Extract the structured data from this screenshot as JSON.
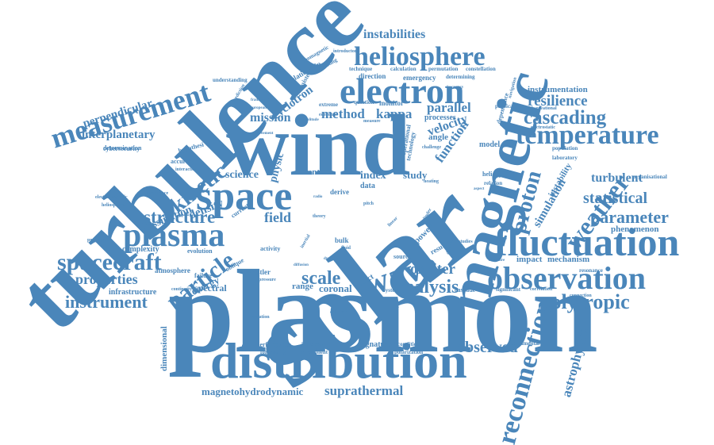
{
  "word_cloud": {
    "colors": {
      "text": "#4a86ba",
      "background": "#ffffff"
    },
    "words": [
      {
        "text": "plasmon",
        "weight": 100
      },
      {
        "text": "solar",
        "weight": 100
      },
      {
        "text": "turbulence",
        "weight": 85
      },
      {
        "text": "wind",
        "weight": 80
      },
      {
        "text": "magnetic",
        "weight": 60
      },
      {
        "text": "distribution",
        "weight": 55
      },
      {
        "text": "fluctuation",
        "weight": 50
      },
      {
        "text": "space",
        "weight": 45
      },
      {
        "text": "electron",
        "weight": 45
      },
      {
        "text": "heliosphere",
        "weight": 40
      },
      {
        "text": "measurement",
        "weight": 40
      },
      {
        "text": "observation",
        "weight": 40
      },
      {
        "text": "plasma",
        "weight": 40
      },
      {
        "text": "temperature",
        "weight": 38
      },
      {
        "text": "wave",
        "weight": 38
      },
      {
        "text": "reconnection",
        "weight": 33
      },
      {
        "text": "weather",
        "weight": 30
      },
      {
        "text": "spacecraft",
        "weight": 28
      },
      {
        "text": "particle",
        "weight": 28
      },
      {
        "text": "kinetic",
        "weight": 28
      },
      {
        "text": "proton",
        "weight": 25
      },
      {
        "text": "polytropic",
        "weight": 25
      },
      {
        "text": "cascading",
        "weight": 25
      },
      {
        "text": "parameter",
        "weight": 22
      },
      {
        "text": "analysis",
        "weight": 22
      },
      {
        "text": "structure",
        "weight": 22
      },
      {
        "text": "scale",
        "weight": 22
      },
      {
        "text": "observed",
        "weight": 20
      },
      {
        "text": "instrument",
        "weight": 20
      },
      {
        "text": "suprathermal",
        "weight": 18
      },
      {
        "text": "properties",
        "weight": 18
      },
      {
        "text": "statistical",
        "weight": 18
      },
      {
        "text": "resilience",
        "weight": 18
      },
      {
        "text": "astrophysics",
        "weight": 18
      },
      {
        "text": "orbiter",
        "weight": 18
      },
      {
        "text": "perpendicular",
        "weight": 16
      },
      {
        "text": "interplanetary",
        "weight": 16
      },
      {
        "text": "instabilities",
        "weight": 16
      },
      {
        "text": "method",
        "weight": 16
      },
      {
        "text": "kappa",
        "weight": 16
      },
      {
        "text": "mission",
        "weight": 16
      },
      {
        "text": "parallel",
        "weight": 16
      },
      {
        "text": "velocity",
        "weight": 16
      },
      {
        "text": "function",
        "weight": 16
      },
      {
        "text": "cyclotron",
        "weight": 15
      },
      {
        "text": "field",
        "weight": 18
      },
      {
        "text": "turbulent",
        "weight": 16
      },
      {
        "text": "simulation",
        "weight": 15
      },
      {
        "text": "dissipation",
        "weight": 15
      },
      {
        "text": "density",
        "weight": 15
      },
      {
        "text": "magnetohydrodynamic",
        "weight": 14
      },
      {
        "text": "science",
        "weight": 15
      },
      {
        "text": "physic",
        "weight": 15
      },
      {
        "text": "phenomenon",
        "weight": 12
      },
      {
        "text": "instrumentation",
        "weight": 12
      },
      {
        "text": "dimensional",
        "weight": 12
      },
      {
        "text": "index",
        "weight": 14
      },
      {
        "text": "study",
        "weight": 14
      },
      {
        "text": "energy",
        "weight": 13
      },
      {
        "text": "spectral",
        "weight": 13
      },
      {
        "text": "instability",
        "weight": 12
      },
      {
        "text": "mechanism",
        "weight": 12
      },
      {
        "text": "impact",
        "weight": 12
      },
      {
        "text": "coronal",
        "weight": 13
      },
      {
        "text": "range",
        "weight": 12
      },
      {
        "text": "infrastructure",
        "weight": 11
      },
      {
        "text": "complexity",
        "weight": 11
      },
      {
        "text": "atmosphere",
        "weight": 10
      },
      {
        "text": "signature",
        "weight": 11
      },
      {
        "text": "power",
        "weight": 12
      },
      {
        "text": "event",
        "weight": 12
      },
      {
        "text": "data",
        "weight": 11
      },
      {
        "text": "model",
        "weight": 11
      },
      {
        "text": "angle",
        "weight": 12
      },
      {
        "text": "processes",
        "weight": 11
      },
      {
        "text": "monitor",
        "weight": 10
      },
      {
        "text": "emergency",
        "weight": 10
      },
      {
        "text": "direction",
        "weight": 10
      },
      {
        "text": "relationship",
        "weight": 10
      },
      {
        "text": "consistent",
        "weight": 9
      },
      {
        "text": "cybersecurity",
        "weight": 9
      },
      {
        "text": "determination",
        "weight": 9
      },
      {
        "text": "hypothesi",
        "weight": 9
      },
      {
        "text": "accuracy",
        "weight": 9
      },
      {
        "text": "evolution",
        "weight": 9
      },
      {
        "text": "whistler",
        "weight": 10
      },
      {
        "text": "activity",
        "weight": 9
      },
      {
        "text": "oblique",
        "weight": 9
      },
      {
        "text": "failure",
        "weight": 9
      },
      {
        "text": "current",
        "weight": 9
      },
      {
        "text": "effect",
        "weight": 10
      },
      {
        "text": "bulk",
        "weight": 10
      },
      {
        "text": "derive",
        "weight": 10
      },
      {
        "text": "source",
        "weight": 9
      },
      {
        "text": "result",
        "weight": 9
      },
      {
        "text": "helicity",
        "weight": 9
      },
      {
        "text": "relation",
        "weight": 9
      },
      {
        "text": "population",
        "weight": 9
      },
      {
        "text": "laboratory",
        "weight": 8
      },
      {
        "text": "organisational",
        "weight": 8
      },
      {
        "text": "resonance",
        "weight": 8
      },
      {
        "text": "cascade",
        "weight": 8
      },
      {
        "text": "significant",
        "weight": 8
      },
      {
        "text": "performance",
        "weight": 8
      },
      {
        "text": "forecasting",
        "weight": 8
      },
      {
        "text": "important",
        "weight": 8
      },
      {
        "text": "component",
        "weight": 8
      },
      {
        "text": "condition",
        "weight": 8
      },
      {
        "text": "polarization",
        "weight": 8
      },
      {
        "text": "fundamental",
        "weight": 7
      },
      {
        "text": "system",
        "weight": 8
      },
      {
        "text": "operational",
        "weight": 8
      },
      {
        "text": "technology",
        "weight": 8
      },
      {
        "text": "calculation",
        "weight": 7
      },
      {
        "text": "permutation",
        "weight": 7
      },
      {
        "text": "constellation",
        "weight": 7
      },
      {
        "text": "determining",
        "weight": 7
      },
      {
        "text": "technique",
        "weight": 7
      },
      {
        "text": "evaluating",
        "weight": 7
      },
      {
        "text": "understanding",
        "weight": 7
      },
      {
        "text": "geomagnetic",
        "weight": 7
      },
      {
        "text": "introductory",
        "weight": 6
      },
      {
        "text": "dependence",
        "weight": 7
      },
      {
        "text": "navigation",
        "weight": 6
      },
      {
        "text": "observational",
        "weight": 6
      },
      {
        "text": "physical",
        "weight": 7
      },
      {
        "text": "electrostatic",
        "weight": 6
      },
      {
        "text": "connection",
        "weight": 6
      },
      {
        "text": "correlation",
        "weight": 6
      },
      {
        "text": "question",
        "weight": 7
      },
      {
        "text": "extreme",
        "weight": 7
      },
      {
        "text": "prediction",
        "weight": 6
      },
      {
        "text": "measure",
        "weight": 6
      },
      {
        "text": "challenge",
        "weight": 6
      },
      {
        "text": "economic",
        "weight": 6
      },
      {
        "text": "heliospheric",
        "weight": 6
      },
      {
        "text": "electromagnetic",
        "weight": 6
      },
      {
        "text": "propagation",
        "weight": 6
      },
      {
        "text": "interaction",
        "weight": 6
      },
      {
        "text": "occurrence",
        "weight": 6
      },
      {
        "text": "pressure",
        "weight": 6
      },
      {
        "text": "continuity",
        "weight": 6
      },
      {
        "text": "resolution",
        "weight": 6
      },
      {
        "text": "coherent",
        "weight": 6
      },
      {
        "text": "amplitude",
        "weight": 5
      },
      {
        "text": "european",
        "weight": 5
      },
      {
        "text": "agreement",
        "weight": 5
      },
      {
        "text": "framework",
        "weight": 5
      },
      {
        "text": "frequency",
        "weight": 5
      },
      {
        "text": "pitch",
        "weight": 6
      },
      {
        "text": "theory",
        "weight": 6
      },
      {
        "text": "fluid",
        "weight": 6
      },
      {
        "text": "linear",
        "weight": 6
      },
      {
        "text": "diffusion",
        "weight": 5
      },
      {
        "text": "radio",
        "weight": 5
      },
      {
        "text": "heating",
        "weight": 6
      },
      {
        "text": "cylinder",
        "weight": 6
      },
      {
        "text": "inertial",
        "weight": 6
      },
      {
        "text": "dynamics",
        "weight": 5
      },
      {
        "text": "studies",
        "weight": 6
      },
      {
        "text": "different",
        "weight": 6
      },
      {
        "text": "literature",
        "weight": 5
      },
      {
        "text": "aspect",
        "weight": 5
      }
    ]
  }
}
